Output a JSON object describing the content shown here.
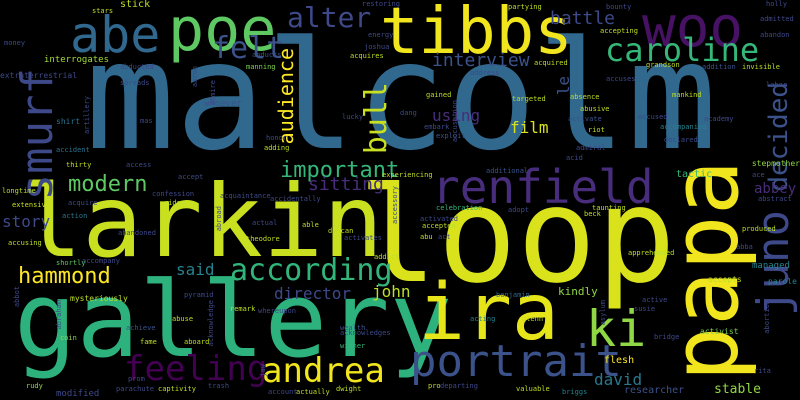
{
  "words": [
    {
      "text": "malcolm",
      "color": "#31688e"
    },
    {
      "text": "loop",
      "color": "#d9e21b"
    },
    {
      "text": "larkin",
      "color": "#c8e020"
    },
    {
      "text": "gallery",
      "color": "#2db27d"
    },
    {
      "text": "papa",
      "color": "#f1e51d"
    },
    {
      "text": "tibbs",
      "color": "#f1e51d"
    },
    {
      "text": "woo",
      "color": "#471164"
    },
    {
      "text": "poe",
      "color": "#5ec962"
    },
    {
      "text": "abe",
      "color": "#31688e"
    },
    {
      "text": "ira",
      "color": "#e6e51a"
    },
    {
      "text": "renfield",
      "color": "#472d7b"
    },
    {
      "text": "portrait",
      "color": "#3b528b"
    },
    {
      "text": "ki",
      "color": "#8fd744"
    },
    {
      "text": "smurf",
      "color": "#3e4989"
    },
    {
      "text": "caroline",
      "color": "#35b779"
    },
    {
      "text": "juno",
      "color": "#3e4989"
    },
    {
      "text": "andrea",
      "color": "#f1e51d"
    },
    {
      "text": "feeling",
      "color": "#440154"
    },
    {
      "text": "according",
      "color": "#31b57b"
    },
    {
      "text": "hammond",
      "color": "#fde725"
    },
    {
      "text": "modern",
      "color": "#5ec962"
    },
    {
      "text": "alter",
      "color": "#3e4989"
    },
    {
      "text": "felt",
      "color": "#3b528b"
    },
    {
      "text": "battle",
      "color": "#3e4989"
    },
    {
      "text": "bull",
      "color": "#c8e020"
    },
    {
      "text": "decided",
      "color": "#3b528b"
    },
    {
      "text": "important",
      "color": "#35b779"
    },
    {
      "text": "sitting",
      "color": "#472d7b"
    },
    {
      "text": "interview",
      "color": "#3b528b"
    },
    {
      "text": "audience",
      "color": "#fde725"
    },
    {
      "text": "film",
      "color": "#d9e21b"
    },
    {
      "text": "using",
      "color": "#472d7b"
    },
    {
      "text": "story",
      "color": "#3e4989"
    },
    {
      "text": "said",
      "color": "#26828e"
    },
    {
      "text": "director",
      "color": "#3e4989"
    },
    {
      "text": "john",
      "color": "#bddf26"
    },
    {
      "text": "david",
      "color": "#2a788e"
    },
    {
      "text": "abbey",
      "color": "#472d7b"
    },
    {
      "text": "stable",
      "color": "#8fd744"
    },
    {
      "text": "researcher",
      "color": "#3b528b"
    },
    {
      "text": "le",
      "color": "#3b528b"
    },
    {
      "text": "kindly",
      "color": "#8fd744"
    },
    {
      "text": "stick",
      "color": "#bddf26"
    },
    {
      "text": "tactic",
      "color": "#35b779"
    },
    {
      "text": "managed",
      "color": "#26828e"
    },
    {
      "text": "interrogates",
      "color": "#a0da39"
    },
    {
      "text": "whoever",
      "color": "#3b528b"
    },
    {
      "text": "accepts",
      "color": "#bddf26"
    },
    {
      "text": "stepmother",
      "color": "#8fd744"
    },
    {
      "text": "activist",
      "color": "#7ad151"
    },
    {
      "text": "parole",
      "color": "#26828e"
    },
    {
      "text": "abducted",
      "color": "#3e4989"
    },
    {
      "text": "manning",
      "color": "#7ad151"
    },
    {
      "text": "extraterrestrial",
      "color": "#3e4989"
    },
    {
      "text": "shirt",
      "color": "#2c728e"
    },
    {
      "text": "modified",
      "color": "#3e4989"
    },
    {
      "text": "rudy",
      "color": "#8fd744"
    },
    {
      "text": "coin",
      "color": "#8fd744"
    },
    {
      "text": "accusing",
      "color": "#bddf26"
    },
    {
      "text": "action",
      "color": "#2a788e"
    },
    {
      "text": "acquire",
      "color": "#3e4989"
    },
    {
      "text": "extensive",
      "color": "#c8e020"
    },
    {
      "text": "longtime",
      "color": "#bddf26"
    },
    {
      "text": "thirty",
      "color": "#bddf26"
    },
    {
      "text": "accident",
      "color": "#2c728e"
    },
    {
      "text": "shortly",
      "color": "#5ec962"
    },
    {
      "text": "mysteriously",
      "color": "#bddf26"
    },
    {
      "text": "abandoned",
      "color": "#3e4989"
    },
    {
      "text": "achieve",
      "color": "#3b528b"
    },
    {
      "text": "fame",
      "color": "#bddf26"
    },
    {
      "text": "captivity",
      "color": "#bddf26"
    },
    {
      "text": "trash",
      "color": "#3e4989"
    },
    {
      "text": "prom",
      "color": "#3e4989"
    },
    {
      "text": "parachute",
      "color": "#3e4989"
    },
    {
      "text": "abuse",
      "color": "#bddf26"
    },
    {
      "text": "aboard",
      "color": "#bddf26"
    },
    {
      "text": "remark",
      "color": "#bddf26"
    },
    {
      "text": "wealth",
      "color": "#3b528b"
    },
    {
      "text": "winner",
      "color": "#35b779"
    },
    {
      "text": "actually",
      "color": "#bddf26"
    },
    {
      "text": "account",
      "color": "#3e4989"
    },
    {
      "text": "dwight",
      "color": "#bddf26"
    },
    {
      "text": "departing",
      "color": "#3e4989"
    },
    {
      "text": "valuable",
      "color": "#bddf26"
    },
    {
      "text": "briggs",
      "color": "#26828e"
    },
    {
      "text": "flesh",
      "color": "#fde725"
    },
    {
      "text": "acting",
      "color": "#26828e"
    },
    {
      "text": "glenn",
      "color": "#bddf26"
    },
    {
      "text": "benjamin",
      "color": "#31688e"
    },
    {
      "text": "admiral",
      "color": "#3e4989"
    },
    {
      "text": "acid",
      "color": "#3e4989"
    },
    {
      "text": "riot",
      "color": "#bddf26"
    },
    {
      "text": "abusive",
      "color": "#bddf26"
    },
    {
      "text": "activate",
      "color": "#3b528b"
    },
    {
      "text": "accused",
      "color": "#3e4989"
    },
    {
      "text": "gained",
      "color": "#bddf26"
    },
    {
      "text": "embark",
      "color": "#3e4989"
    },
    {
      "text": "exploit",
      "color": "#3b528b"
    },
    {
      "text": "joshua",
      "color": "#3e4989"
    },
    {
      "text": "acquires",
      "color": "#bddf26"
    },
    {
      "text": "energy",
      "color": "#3e4989"
    },
    {
      "text": "restoring",
      "color": "#3e4989"
    },
    {
      "text": "stars",
      "color": "#bddf26"
    },
    {
      "text": "partying",
      "color": "#bddf26"
    },
    {
      "text": "accepting",
      "color": "#bddf26"
    },
    {
      "text": "abandon",
      "color": "#3e4989"
    },
    {
      "text": "admitted",
      "color": "#3e4989"
    },
    {
      "text": "invisible",
      "color": "#bddf26"
    },
    {
      "text": "labor",
      "color": "#3e4989"
    },
    {
      "text": "addition",
      "color": "#3b528b"
    },
    {
      "text": "grandson",
      "color": "#bddf26"
    },
    {
      "text": "accuses",
      "color": "#3e4989"
    },
    {
      "text": "absence",
      "color": "#bddf26"
    },
    {
      "text": "mankind",
      "color": "#bddf26"
    },
    {
      "text": "accompanied",
      "color": "#26828e"
    },
    {
      "text": "declared",
      "color": "#3e4989"
    },
    {
      "text": "experiencing",
      "color": "#bddf26"
    },
    {
      "text": "additional",
      "color": "#3b528b"
    },
    {
      "text": "adopt",
      "color": "#3e4989"
    },
    {
      "text": "celebration",
      "color": "#35b779"
    },
    {
      "text": "accepted",
      "color": "#bddf26"
    },
    {
      "text": "activated",
      "color": "#3e4989"
    },
    {
      "text": "abu",
      "color": "#bddf26"
    },
    {
      "text": "act",
      "color": "#3e4989"
    },
    {
      "text": "taunting",
      "color": "#bddf26"
    },
    {
      "text": "beck",
      "color": "#bddf26"
    },
    {
      "text": "targeted",
      "color": "#bddf26"
    },
    {
      "text": "duncan",
      "color": "#bddf26"
    },
    {
      "text": "activates",
      "color": "#3e4989"
    },
    {
      "text": "addict",
      "color": "#bddf26"
    },
    {
      "text": "theodore",
      "color": "#bddf26"
    },
    {
      "text": "actual",
      "color": "#3e4989"
    },
    {
      "text": "able",
      "color": "#bddf26"
    },
    {
      "text": "whereupon",
      "color": "#3e4989"
    },
    {
      "text": "pyramid",
      "color": "#3e4989"
    },
    {
      "text": "acquaintance",
      "color": "#3e4989"
    },
    {
      "text": "confession",
      "color": "#3e4989"
    },
    {
      "text": "accept",
      "color": "#3e4989"
    },
    {
      "text": "rider",
      "color": "#bddf26"
    },
    {
      "text": "access",
      "color": "#3e4989"
    },
    {
      "text": "accidentally",
      "color": "#3e4989"
    },
    {
      "text": "adding",
      "color": "#bddf26"
    },
    {
      "text": "honor",
      "color": "#3e4989"
    },
    {
      "text": "abducts",
      "color": "#3b528b"
    },
    {
      "text": "address",
      "color": "#3e4989"
    },
    {
      "text": "acquired",
      "color": "#bddf26"
    },
    {
      "text": "pro",
      "color": "#bddf26"
    },
    {
      "text": "abstract",
      "color": "#3e4989"
    },
    {
      "text": "produced",
      "color": "#bddf26"
    },
    {
      "text": "apprehended",
      "color": "#bddf26"
    },
    {
      "text": "active",
      "color": "#3e4989"
    },
    {
      "text": "susie",
      "color": "#3e4989"
    },
    {
      "text": "abortion",
      "color": "#3e4989"
    },
    {
      "text": "rita",
      "color": "#3e4989"
    },
    {
      "text": "aaron",
      "color": "#3e4989"
    },
    {
      "text": "accessory",
      "color": "#3e4989"
    },
    {
      "text": "bounty",
      "color": "#3e4989"
    },
    {
      "text": "holly",
      "color": "#3e4989"
    },
    {
      "text": "money",
      "color": "#3e4989"
    },
    {
      "text": "artillery",
      "color": "#3e4989"
    },
    {
      "text": "abroad",
      "color": "#3e4989"
    },
    {
      "text": "acknowledges",
      "color": "#3e4989"
    },
    {
      "text": "acknowledge",
      "color": "#3e4989"
    },
    {
      "text": "abbot",
      "color": "#3e4989"
    },
    {
      "text": "abraham",
      "color": "#3e4989"
    },
    {
      "text": "academy",
      "color": "#3e4989"
    },
    {
      "text": "asylum",
      "color": "#3e4989"
    },
    {
      "text": "admire",
      "color": "#3e4989"
    },
    {
      "text": "accusation",
      "color": "#3e4989"
    },
    {
      "text": "accompany",
      "color": "#3e4989"
    },
    {
      "text": "spreads",
      "color": "#3e4989"
    },
    {
      "text": "lucky",
      "color": "#3e4989"
    },
    {
      "text": "dang",
      "color": "#3e4989"
    },
    {
      "text": "jaw",
      "color": "#3e4989"
    },
    {
      "text": "bridge",
      "color": "#3e4989"
    },
    {
      "text": "mas",
      "color": "#3e4989"
    },
    {
      "text": "abba",
      "color": "#3e4989"
    },
    {
      "text": "ace",
      "color": "#3e4989"
    },
    {
      "text": "plaza",
      "color": "#3e4989"
    }
  ]
}
